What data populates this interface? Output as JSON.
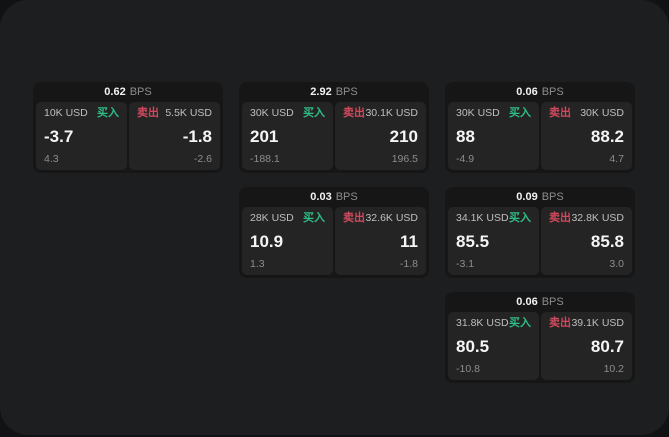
{
  "colors": {
    "outer_background": "#111213",
    "panel_background": "#1d1e1f",
    "card_background": "#161617",
    "cell_background": "#242425",
    "buy_green": "#2ebd85",
    "sell_red": "#d0495c",
    "value_white": "#f5f5f5",
    "muted_gray": "#8d8d8d"
  },
  "labels": {
    "bps": "BPS",
    "buy": "买入",
    "sell": "卖出"
  },
  "cards": [
    {
      "bps": "0.62",
      "buy": {
        "amount": "10K USD",
        "price": "-3.7",
        "delta": "4.3"
      },
      "sell": {
        "amount": "5.5K USD",
        "price": "-1.8",
        "delta": "-2.6"
      }
    },
    {
      "bps": "2.92",
      "buy": {
        "amount": "30K USD",
        "price": "201",
        "delta": "-188.1"
      },
      "sell": {
        "amount": "30.1K USD",
        "price": "210",
        "delta": "196.5"
      }
    },
    {
      "bps": "0.03",
      "buy": {
        "amount": "28K USD",
        "price": "10.9",
        "delta": "1.3"
      },
      "sell": {
        "amount": "32.6K USD",
        "price": "11",
        "delta": "-1.8"
      }
    },
    {
      "bps": "0.06",
      "buy": {
        "amount": "30K USD",
        "price": "88",
        "delta": "-4.9"
      },
      "sell": {
        "amount": "30K USD",
        "price": "88.2",
        "delta": "4.7"
      }
    },
    {
      "bps": "0.09",
      "buy": {
        "amount": "34.1K USD",
        "price": "85.5",
        "delta": "-3.1"
      },
      "sell": {
        "amount": "32.8K USD",
        "price": "85.8",
        "delta": "3.0"
      }
    },
    {
      "bps": "0.06",
      "buy": {
        "amount": "31.8K USD",
        "price": "80.5",
        "delta": "-10.8"
      },
      "sell": {
        "amount": "39.1K USD",
        "price": "80.7",
        "delta": "10.2"
      }
    }
  ]
}
